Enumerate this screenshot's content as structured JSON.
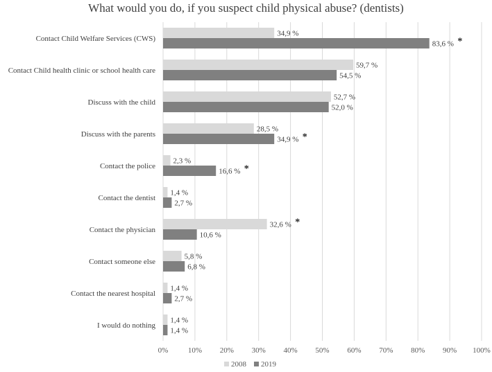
{
  "chart_data": {
    "type": "bar",
    "orientation": "horizontal",
    "title": "What would you do, if you suspect child physical abuse? (dentists)",
    "xlabel": "",
    "ylabel": "",
    "xlim": [
      0,
      100
    ],
    "x_ticks": [
      "0%",
      "10%",
      "20%",
      "30%",
      "40%",
      "50%",
      "60%",
      "70%",
      "80%",
      "90%",
      "100%"
    ],
    "grid": "vertical",
    "legend_position": "bottom",
    "significance_marker": "*",
    "categories": [
      "Contact Child Welfare Services (CWS)",
      "Contact Child health clinic or school health care",
      "Discuss with the child",
      "Discuss with the parents",
      "Contact the police",
      "Contact the dentist",
      "Contact the physician",
      "Contact someone else",
      "Contact the nearest hospital",
      "I would do nothing"
    ],
    "series": [
      {
        "name": "2008",
        "color": "#d9d9d9",
        "values": [
          34.9,
          59.7,
          52.7,
          28.5,
          2.3,
          1.4,
          32.6,
          5.8,
          1.4,
          1.4
        ],
        "labels": [
          "34,9 %",
          "59,7 %",
          "52,7 %",
          "28,5 %",
          "2,3 %",
          "1,4 %",
          "32,6 %",
          "5,8 %",
          "1,4 %",
          "1,4 %"
        ],
        "significant": [
          false,
          false,
          false,
          false,
          false,
          false,
          true,
          false,
          false,
          false
        ]
      },
      {
        "name": "2019",
        "color": "#808080",
        "values": [
          83.6,
          54.5,
          52.0,
          34.9,
          16.6,
          2.7,
          10.6,
          6.8,
          2.7,
          1.4
        ],
        "labels": [
          "83,6 %",
          "54,5 %",
          "52,0 %",
          "34,9 %",
          "16,6 %",
          "2,7 %",
          "10,6 %",
          "6,8 %",
          "2,7 %",
          "1,4 %"
        ],
        "significant": [
          true,
          false,
          false,
          true,
          true,
          false,
          false,
          false,
          false,
          false
        ]
      }
    ]
  }
}
